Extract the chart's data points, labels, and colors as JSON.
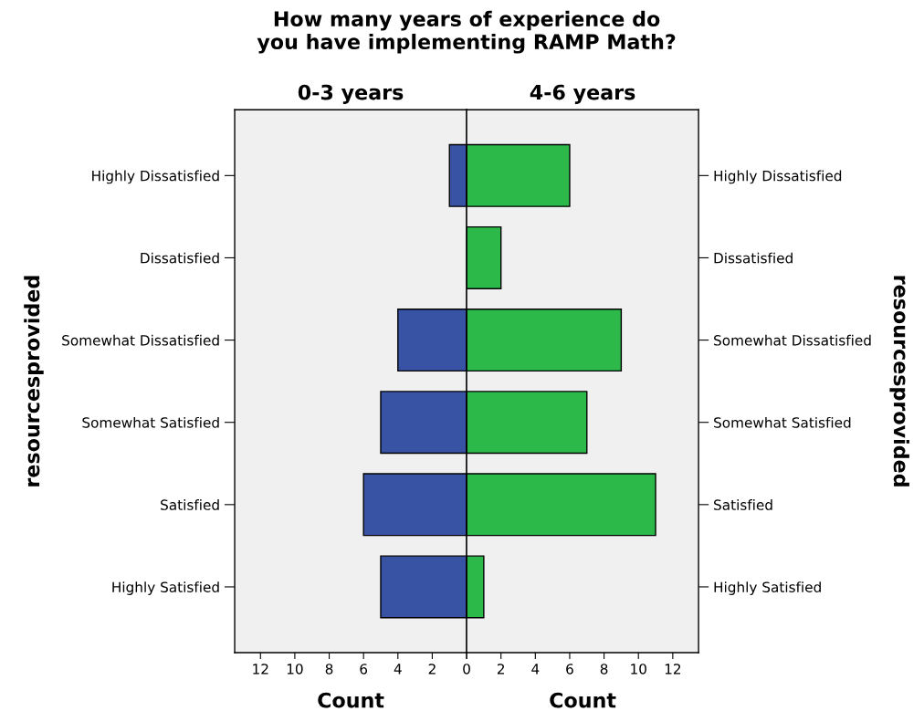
{
  "chart_data": [
    {
      "type": "bar",
      "orientation": "horizontal",
      "title": "How many years of experience do\nyou have implementing RAMP Math?",
      "subtitle": "0-3 years",
      "xlabel": "Count",
      "ylabel": "resourcesprovided",
      "categories": [
        "Highly Dissatisfied",
        "Dissatisfied",
        "Somewhat Dissatisfied",
        "Somewhat Satisfied",
        "Satisfied",
        "Highly Satisfied"
      ],
      "series": [
        {
          "color": "#3953a4",
          "values": [
            1,
            null,
            4,
            5,
            6,
            5
          ]
        }
      ],
      "xlim": [
        13.5,
        0
      ],
      "xticks": [
        12,
        10,
        8,
        6,
        4,
        2,
        {
          "value": 0,
          "label": null
        }
      ],
      "grid": false,
      "legend": false
    },
    {
      "type": "bar",
      "orientation": "horizontal",
      "subtitle": "4-6 years",
      "xlabel": "Count",
      "ylabel": "resourcesprovided",
      "categories": [
        "Highly Dissatisfied",
        "Dissatisfied",
        "Somewhat Dissatisfied",
        "Somewhat Satisfied",
        "Satisfied",
        "Highly Satisfied"
      ],
      "series": [
        {
          "color": "#2db84a",
          "values": [
            6,
            2,
            9,
            7,
            11,
            1
          ]
        }
      ],
      "xlim": [
        0,
        13.5
      ],
      "xticks": [
        0,
        2,
        4,
        6,
        8,
        10,
        12
      ],
      "grid": false,
      "legend": false
    }
  ]
}
